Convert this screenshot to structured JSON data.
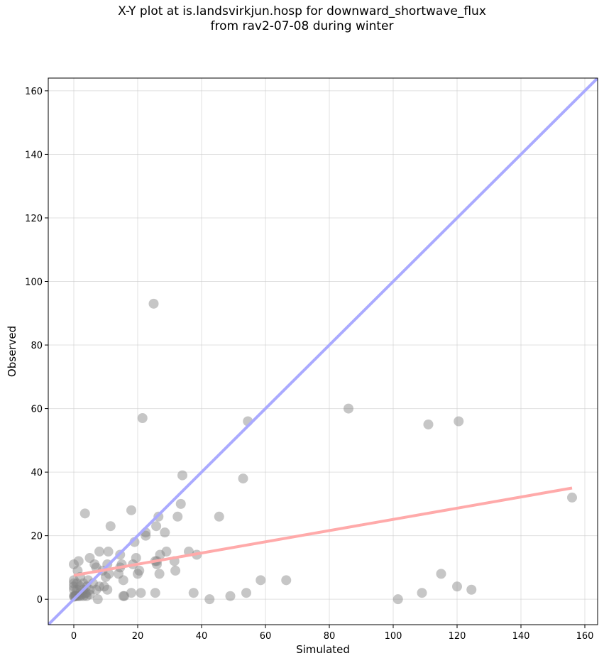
{
  "chart_data": {
    "type": "scatter",
    "title_line1": "X-Y plot at is.landsvirkjun.hosp for downward_shortwave_flux",
    "title_line2": "from rav2-07-08 during winter",
    "xlabel": "Simulated",
    "ylabel": "Observed",
    "xlim": [
      -8,
      164
    ],
    "ylim": [
      -8,
      164
    ],
    "xticks": [
      0,
      20,
      40,
      60,
      80,
      100,
      120,
      140,
      160
    ],
    "yticks": [
      0,
      20,
      40,
      60,
      80,
      100,
      120,
      140,
      160
    ],
    "grid": true,
    "colors": {
      "points": "#808080",
      "one_to_one": "#aaaaff",
      "fit": "#ffaaaa"
    },
    "one_to_one_line": {
      "x": [
        -8,
        164
      ],
      "y": [
        -8,
        164
      ]
    },
    "fit_line": {
      "x": [
        0,
        156
      ],
      "y": [
        7.5,
        35
      ]
    },
    "points": [
      [
        0,
        1
      ],
      [
        0.3,
        1
      ],
      [
        0.6,
        1
      ],
      [
        1,
        1
      ],
      [
        0.5,
        1.2
      ],
      [
        0.2,
        0.8
      ],
      [
        1.5,
        1
      ],
      [
        2,
        1
      ],
      [
        3,
        1
      ],
      [
        4,
        1
      ],
      [
        5,
        1.5
      ],
      [
        2.5,
        1.5
      ],
      [
        3.5,
        1.8
      ],
      [
        0,
        3
      ],
      [
        0,
        4
      ],
      [
        0,
        5
      ],
      [
        0,
        6
      ],
      [
        0,
        11
      ],
      [
        1,
        3
      ],
      [
        1,
        5
      ],
      [
        1.2,
        9
      ],
      [
        1.5,
        12
      ],
      [
        2,
        2
      ],
      [
        2,
        4
      ],
      [
        2,
        7
      ],
      [
        3,
        3
      ],
      [
        3,
        5
      ],
      [
        3.5,
        27
      ],
      [
        4,
        2
      ],
      [
        4,
        4
      ],
      [
        4.5,
        6
      ],
      [
        5,
        13
      ],
      [
        5,
        3
      ],
      [
        6,
        5
      ],
      [
        6.5,
        11
      ],
      [
        7,
        3
      ],
      [
        7,
        10
      ],
      [
        7.5,
        0
      ],
      [
        8,
        4
      ],
      [
        8,
        15
      ],
      [
        9,
        9
      ],
      [
        9.5,
        4
      ],
      [
        10,
        7
      ],
      [
        10.5,
        3
      ],
      [
        10.5,
        11
      ],
      [
        10.8,
        15
      ],
      [
        11,
        8
      ],
      [
        11.5,
        23
      ],
      [
        14,
        8
      ],
      [
        14.5,
        10
      ],
      [
        14.5,
        14
      ],
      [
        15,
        11
      ],
      [
        15.5,
        6
      ],
      [
        15.5,
        1
      ],
      [
        15.8,
        1
      ],
      [
        18,
        2
      ],
      [
        18,
        28
      ],
      [
        18.5,
        11
      ],
      [
        19,
        18
      ],
      [
        19.5,
        13
      ],
      [
        20,
        8
      ],
      [
        20.5,
        9
      ],
      [
        21,
        2
      ],
      [
        21.5,
        57
      ],
      [
        22.5,
        21
      ],
      [
        22.5,
        20
      ],
      [
        25,
        93
      ],
      [
        25.5,
        12
      ],
      [
        25.5,
        2
      ],
      [
        25.8,
        23
      ],
      [
        26,
        11
      ],
      [
        26,
        12
      ],
      [
        26.5,
        26
      ],
      [
        26.8,
        8
      ],
      [
        27,
        14
      ],
      [
        28.5,
        21
      ],
      [
        29,
        15
      ],
      [
        31.5,
        12
      ],
      [
        31.8,
        9
      ],
      [
        32.5,
        26
      ],
      [
        33.5,
        30
      ],
      [
        34,
        39
      ],
      [
        36,
        15
      ],
      [
        37.5,
        2
      ],
      [
        38.5,
        14
      ],
      [
        42.5,
        0
      ],
      [
        45.5,
        26
      ],
      [
        49,
        1
      ],
      [
        53,
        38
      ],
      [
        54,
        2
      ],
      [
        54.5,
        56
      ],
      [
        58.5,
        6
      ],
      [
        66.5,
        6
      ],
      [
        86,
        60
      ],
      [
        101.5,
        0
      ],
      [
        109,
        2
      ],
      [
        111,
        55
      ],
      [
        115,
        8
      ],
      [
        120,
        4
      ],
      [
        120.5,
        56
      ],
      [
        124.5,
        3
      ],
      [
        156,
        32
      ]
    ]
  }
}
